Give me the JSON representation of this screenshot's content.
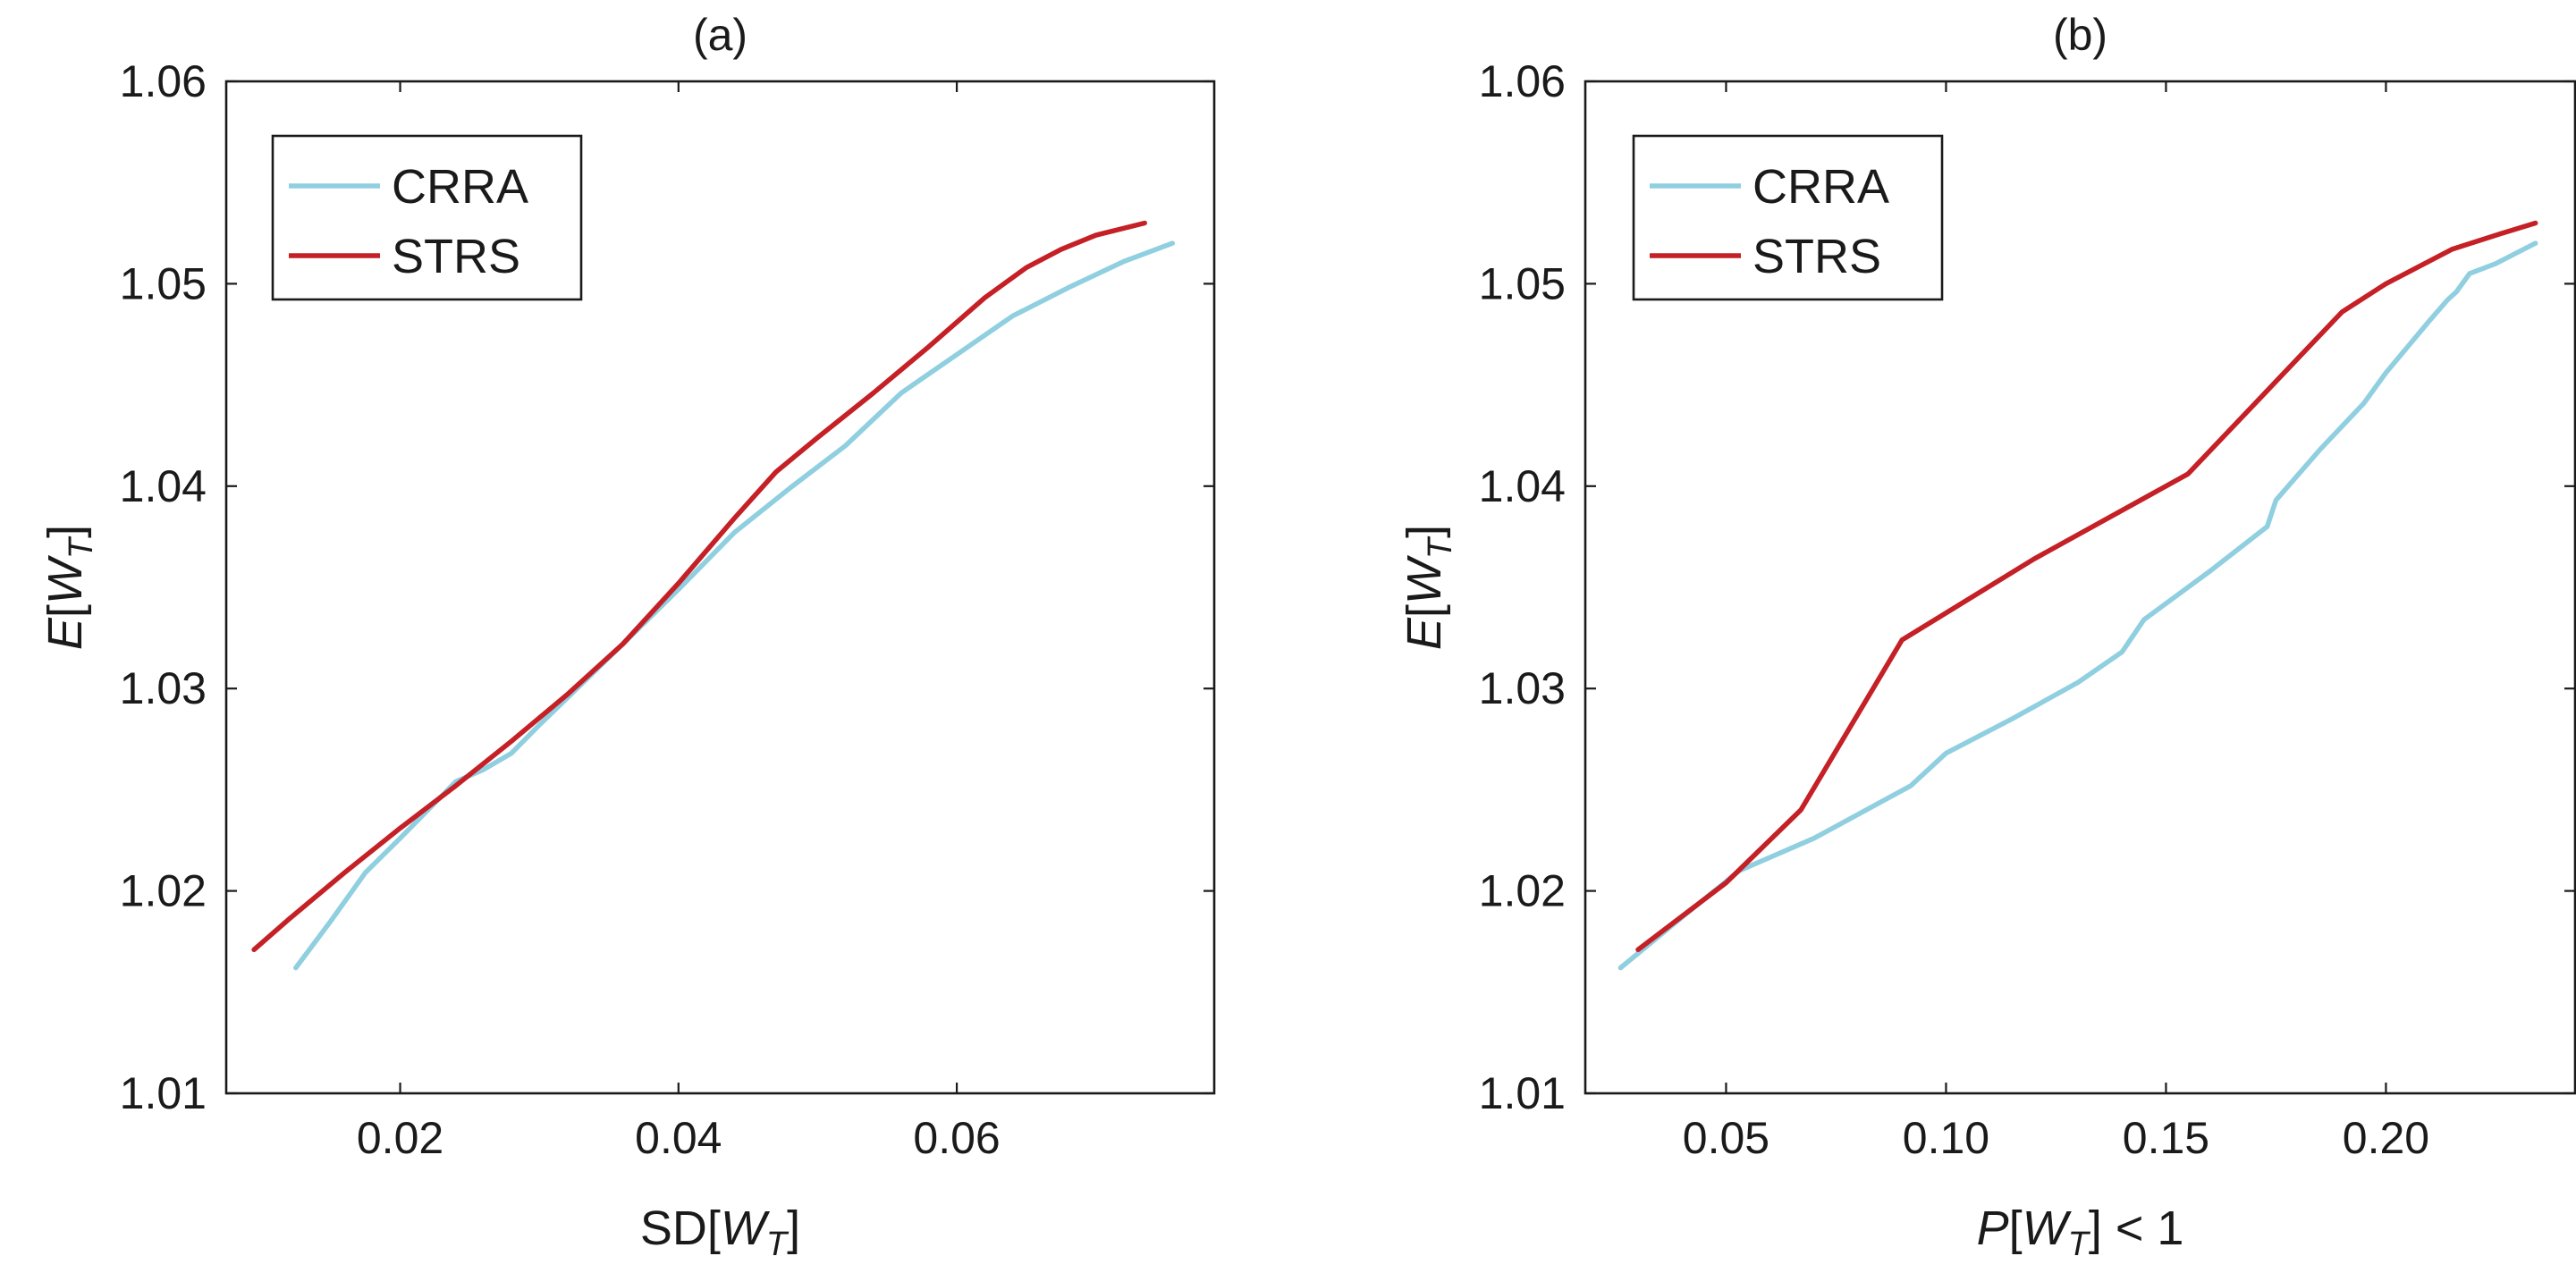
{
  "chart_data": [
    {
      "panel_id": "a",
      "type": "line",
      "title": "(a)",
      "xlabel": {
        "prefix": "SD[",
        "var": "W",
        "sub": "T",
        "suffix": "]"
      },
      "ylabel": {
        "prefix": "",
        "var": "E",
        "mid": "[",
        "var2": "W",
        "sub": "T",
        "suffix": "]"
      },
      "xlim": [
        0.0075,
        0.0785
      ],
      "ylim": [
        1.01,
        1.06
      ],
      "xticks": [
        0.02,
        0.04,
        0.06
      ],
      "xtick_labels": [
        "0.02",
        "0.04",
        "0.06"
      ],
      "yticks": [
        1.01,
        1.02,
        1.03,
        1.04,
        1.05,
        1.06
      ],
      "ytick_labels": [
        "1.01",
        "1.02",
        "1.03",
        "1.04",
        "1.05",
        "1.06"
      ],
      "grid": false,
      "legend": {
        "position": "top-left",
        "entries": [
          "CRRA",
          "STRS"
        ]
      },
      "series": [
        {
          "name": "CRRA",
          "color": "#8fcfe0",
          "points": [
            [
              0.0125,
              1.0162
            ],
            [
              0.015,
              1.0185
            ],
            [
              0.0175,
              1.0209
            ],
            [
              0.02,
              1.0226
            ],
            [
              0.022,
              1.024
            ],
            [
              0.024,
              1.0254
            ],
            [
              0.026,
              1.026
            ],
            [
              0.028,
              1.0268
            ],
            [
              0.03,
              1.0282
            ],
            [
              0.033,
              1.0302
            ],
            [
              0.036,
              1.0322
            ],
            [
              0.04,
              1.0349
            ],
            [
              0.044,
              1.0377
            ],
            [
              0.048,
              1.0399
            ],
            [
              0.052,
              1.042
            ],
            [
              0.056,
              1.0446
            ],
            [
              0.06,
              1.0465
            ],
            [
              0.064,
              1.0484
            ],
            [
              0.068,
              1.0498
            ],
            [
              0.072,
              1.0511
            ],
            [
              0.0755,
              1.052
            ]
          ]
        },
        {
          "name": "STRS",
          "color": "#c42026",
          "points": [
            [
              0.0095,
              1.0171
            ],
            [
              0.012,
              1.0186
            ],
            [
              0.016,
              1.0209
            ],
            [
              0.02,
              1.0231
            ],
            [
              0.024,
              1.0252
            ],
            [
              0.028,
              1.0274
            ],
            [
              0.032,
              1.0297
            ],
            [
              0.036,
              1.0322
            ],
            [
              0.04,
              1.0352
            ],
            [
              0.044,
              1.0384
            ],
            [
              0.047,
              1.0407
            ],
            [
              0.05,
              1.0424
            ],
            [
              0.054,
              1.0446
            ],
            [
              0.058,
              1.0469
            ],
            [
              0.062,
              1.0493
            ],
            [
              0.065,
              1.0508
            ],
            [
              0.0675,
              1.0517
            ],
            [
              0.07,
              1.0524
            ],
            [
              0.0735,
              1.053
            ]
          ]
        }
      ]
    },
    {
      "panel_id": "b",
      "type": "line",
      "title": "(b)",
      "xlabel": {
        "prefix": "",
        "var": "P",
        "mid": "[",
        "var2": "W",
        "sub": "T",
        "suffix": "] < 1"
      },
      "ylabel": {
        "prefix": "",
        "var": "E",
        "mid": "[",
        "var2": "W",
        "sub": "T",
        "suffix": "]"
      },
      "xlim": [
        0.018,
        0.243
      ],
      "ylim": [
        1.01,
        1.06
      ],
      "xticks": [
        0.05,
        0.1,
        0.15,
        0.2
      ],
      "xtick_labels": [
        "0.05",
        "0.10",
        "0.15",
        "0.20"
      ],
      "yticks": [
        1.01,
        1.02,
        1.03,
        1.04,
        1.05,
        1.06
      ],
      "ytick_labels": [
        "1.01",
        "1.02",
        "1.03",
        "1.04",
        "1.05",
        "1.06"
      ],
      "grid": false,
      "legend": {
        "position": "top-left",
        "entries": [
          "CRRA",
          "STRS"
        ]
      },
      "series": [
        {
          "name": "CRRA",
          "color": "#8fcfe0",
          "points": [
            [
              0.026,
              1.0162
            ],
            [
              0.04,
              1.0187
            ],
            [
              0.053,
              1.021
            ],
            [
              0.07,
              1.0226
            ],
            [
              0.092,
              1.0252
            ],
            [
              0.1,
              1.0268
            ],
            [
              0.115,
              1.0285
            ],
            [
              0.13,
              1.0303
            ],
            [
              0.14,
              1.0318
            ],
            [
              0.145,
              1.0334
            ],
            [
              0.16,
              1.0358
            ],
            [
              0.173,
              1.038
            ],
            [
              0.175,
              1.0393
            ],
            [
              0.185,
              1.0418
            ],
            [
              0.195,
              1.0441
            ],
            [
              0.2,
              1.0456
            ],
            [
              0.21,
              1.0482
            ],
            [
              0.214,
              1.0492
            ],
            [
              0.216,
              1.0496
            ],
            [
              0.219,
              1.0505
            ],
            [
              0.225,
              1.051
            ],
            [
              0.234,
              1.052
            ]
          ]
        },
        {
          "name": "STRS",
          "color": "#c42026",
          "points": [
            [
              0.03,
              1.0171
            ],
            [
              0.05,
              1.0204
            ],
            [
              0.067,
              1.024
            ],
            [
              0.09,
              1.0324
            ],
            [
              0.12,
              1.0364
            ],
            [
              0.155,
              1.0406
            ],
            [
              0.19,
              1.0486
            ],
            [
              0.2,
              1.05
            ],
            [
              0.215,
              1.0517
            ],
            [
              0.225,
              1.0524
            ],
            [
              0.234,
              1.053
            ]
          ]
        }
      ]
    }
  ]
}
